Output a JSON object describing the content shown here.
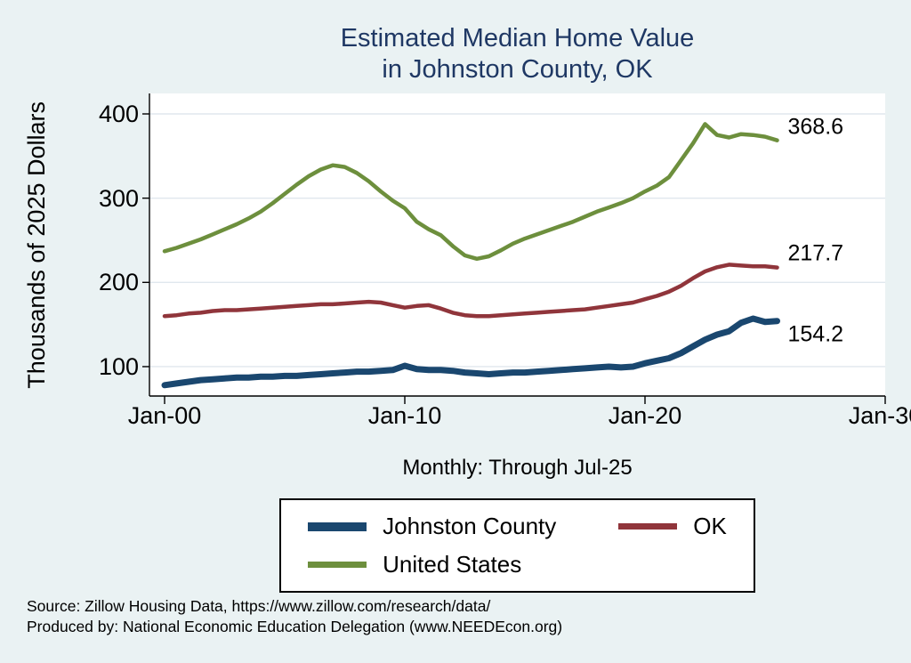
{
  "title": {
    "line1": "Estimated Median Home Value",
    "line2": "in Johnston County, OK"
  },
  "y_axis": {
    "label": "Thousands of 2025 Dollars"
  },
  "note": "Monthly: Through Jul-25",
  "legend": {
    "items": [
      {
        "label": "Johnston County",
        "color": "#1a476f"
      },
      {
        "label": "OK",
        "color": "#90353b"
      },
      {
        "label": "United States",
        "color": "#6d8f3d"
      }
    ]
  },
  "footer": {
    "line1": "Source: Zillow Housing Data, https://www.zillow.com/research/data/",
    "line2": "Produced by: National Economic Education Delegation (www.NEEDEcon.org)"
  },
  "colors": {
    "background": "#eaf2f3",
    "plot_background": "#ffffff",
    "grid": "#e0e7ee",
    "axis": "#000000",
    "title": "#1f3864"
  },
  "chart_data": {
    "type": "line",
    "title": "Estimated Median Home Value in Johnston County, OK",
    "xlabel": "",
    "ylabel": "Thousands of 2025 Dollars",
    "x_note": "decimal years; monthly series Jan-2000 through Jul-2025, semi-annual estimates read from plot",
    "xlim": [
      1999.37,
      2030
    ],
    "ylim": [
      65.1,
      424.3
    ],
    "yticks": [
      100,
      200,
      300,
      400
    ],
    "xticks": [
      {
        "year": 2000,
        "label": "Jan-00"
      },
      {
        "year": 2010,
        "label": "Jan-10"
      },
      {
        "year": 2020,
        "label": "Jan-20"
      },
      {
        "year": 2030,
        "label": "Jan-30"
      }
    ],
    "grid": true,
    "legend_position": "bottom",
    "x": [
      2000,
      2000.5,
      2001,
      2001.5,
      2002,
      2002.5,
      2003,
      2003.5,
      2004,
      2004.5,
      2005,
      2005.5,
      2006,
      2006.5,
      2007,
      2007.5,
      2008,
      2008.5,
      2009,
      2009.5,
      2010,
      2010.5,
      2011,
      2011.5,
      2012,
      2012.5,
      2013,
      2013.5,
      2014,
      2014.5,
      2015,
      2015.5,
      2016,
      2016.5,
      2017,
      2017.5,
      2018,
      2018.5,
      2019,
      2019.5,
      2020,
      2020.5,
      2021,
      2021.5,
      2022,
      2022.5,
      2023,
      2023.5,
      2024,
      2024.5,
      2025,
      2025.5
    ],
    "series": [
      {
        "name": "Johnston County",
        "color": "#1a476f",
        "width": 7,
        "end_label": "154.2",
        "values": [
          78,
          80,
          82,
          84,
          85,
          86,
          87,
          87,
          88,
          88,
          89,
          89,
          90,
          91,
          92,
          93,
          94,
          94,
          95,
          96,
          101,
          97,
          96,
          96,
          95,
          93,
          92,
          91,
          92,
          93,
          93,
          94,
          95,
          96,
          97,
          98,
          99,
          100,
          99,
          100,
          104,
          107,
          110,
          116,
          124,
          132,
          138,
          142,
          152,
          157,
          153,
          154.2
        ]
      },
      {
        "name": "OK",
        "color": "#90353b",
        "width": 4.5,
        "end_label": "217.7",
        "values": [
          160,
          161,
          163,
          164,
          166,
          167,
          167,
          168,
          169,
          170,
          171,
          172,
          173,
          174,
          174,
          175,
          176,
          177,
          176,
          173,
          170,
          172,
          173,
          169,
          164,
          161,
          160,
          160,
          161,
          162,
          163,
          164,
          165,
          166,
          167,
          168,
          170,
          172,
          174,
          176,
          180,
          184,
          189,
          196,
          205,
          213,
          218,
          221,
          220,
          219,
          219,
          217.7
        ]
      },
      {
        "name": "United States",
        "color": "#6d8f3d",
        "width": 4.5,
        "end_label": "368.6",
        "values": [
          237,
          241,
          246,
          251,
          257,
          263,
          269,
          276,
          284,
          294,
          305,
          316,
          326,
          334,
          339,
          337,
          330,
          320,
          308,
          297,
          288,
          272,
          263,
          256,
          243,
          232,
          228,
          231,
          238,
          246,
          252,
          257,
          262,
          267,
          272,
          278,
          284,
          289,
          294,
          300,
          308,
          315,
          325,
          345,
          365,
          388,
          375,
          372,
          376,
          375,
          373,
          368.6
        ]
      }
    ]
  }
}
